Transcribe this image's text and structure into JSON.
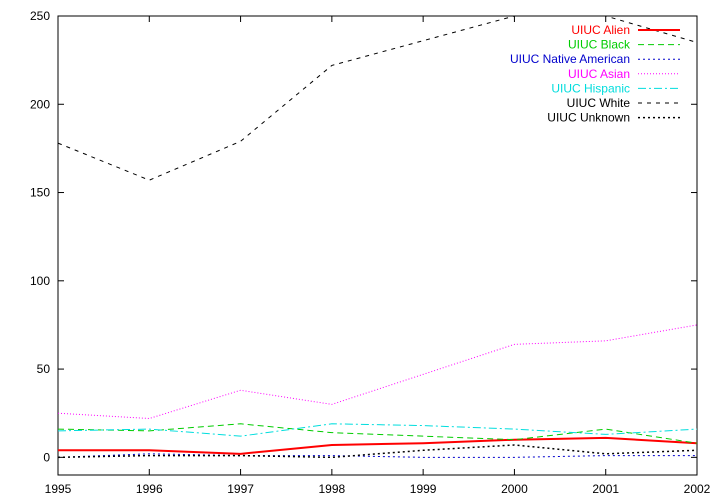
{
  "chart_data": {
    "type": "line",
    "title": "",
    "xlabel": "",
    "ylabel": "",
    "x": [
      1995,
      1996,
      1997,
      1998,
      1999,
      2000,
      2001,
      2002
    ],
    "xlim": [
      1995,
      2002
    ],
    "ylim": [
      -10,
      250
    ],
    "xticks": [
      "1995",
      "1996",
      "1997",
      "1998",
      "1999",
      "2000",
      "2001",
      "2002"
    ],
    "yticks": [
      "0",
      "50",
      "100",
      "150",
      "200",
      "250"
    ],
    "grid": false,
    "legend_position": "top-right",
    "series": [
      {
        "name": "UIUC Alien",
        "color": "#ff0000",
        "dash": "solid",
        "width": 2,
        "values": [
          4,
          4,
          2,
          7,
          8,
          10,
          11,
          8
        ]
      },
      {
        "name": "UIUC Black",
        "color": "#00cc00",
        "dash": "6,4",
        "values": [
          16,
          15,
          19,
          14,
          12,
          10,
          16,
          8
        ]
      },
      {
        "name": "UIUC Native American",
        "color": "#0000cc",
        "dash": "2,3",
        "values": [
          0,
          2,
          1,
          1,
          0,
          0,
          1,
          1
        ]
      },
      {
        "name": "UIUC Asian",
        "color": "#ff00ff",
        "dash": "1,2",
        "values": [
          25,
          22,
          38,
          30,
          47,
          64,
          66,
          75
        ]
      },
      {
        "name": "UIUC Hispanic",
        "color": "#00dddd",
        "dash": "8,3,2,3",
        "values": [
          15,
          16,
          12,
          19,
          18,
          16,
          13,
          16
        ]
      },
      {
        "name": "UIUC White",
        "color": "#000000",
        "dash": "4,5",
        "values": [
          178,
          157,
          179,
          222,
          236,
          250,
          250,
          235
        ]
      },
      {
        "name": "UIUC Unknown",
        "color": "#000000",
        "dash": "2,3",
        "width": 1.5,
        "values": [
          0,
          1,
          1,
          0,
          4,
          7,
          2,
          4
        ]
      }
    ]
  }
}
